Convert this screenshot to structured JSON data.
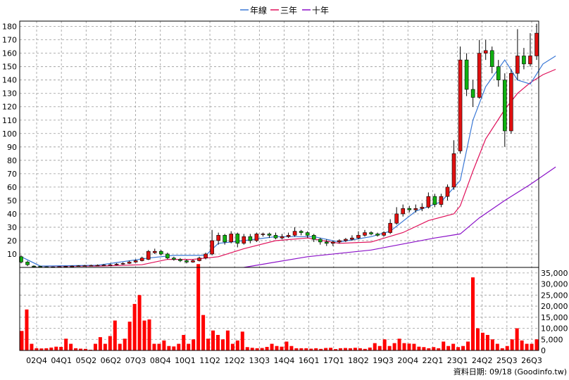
{
  "legend": [
    {
      "label": "年線",
      "color": "#3a78d6"
    },
    {
      "label": "三年",
      "color": "#e0105a"
    },
    {
      "label": "十年",
      "color": "#8a10c8"
    }
  ],
  "source_note": "資料日期: 09/18  (Goodinfo.tw)",
  "colors": {
    "up": "#e01010",
    "down": "#10b010",
    "volume": "#ff0000",
    "grid": "#999999"
  },
  "chart_data": [
    {
      "type": "candlestick",
      "x_tick_labels": [
        "02Q4",
        "04Q1",
        "05Q2",
        "06Q2",
        "07Q3",
        "08Q4",
        "10Q1",
        "11Q2",
        "12Q2",
        "13Q3",
        "14Q4",
        "16Q1",
        "17Q1",
        "18Q2",
        "19Q3",
        "20Q4",
        "22Q1",
        "23Q1",
        "24Q2",
        "25Q3",
        "26Q3"
      ],
      "y_ticks": [
        10,
        20,
        30,
        40,
        50,
        60,
        70,
        80,
        90,
        100,
        110,
        120,
        130,
        140,
        150,
        160,
        170,
        180
      ],
      "ylim": [
        0,
        184
      ],
      "grid": true,
      "candles": [
        {
          "o": 8,
          "c": 4,
          "h": 9,
          "l": 3
        },
        {
          "o": 4,
          "c": 2,
          "h": 5,
          "l": 1
        },
        {
          "o": 1,
          "c": 0.8,
          "h": 1.5,
          "l": 0.3
        },
        {
          "o": 0.8,
          "c": 0.5,
          "h": 1.2,
          "l": 0.2
        },
        {
          "o": 0.5,
          "c": 0.3,
          "h": 0.8,
          "l": 0.1
        },
        {
          "o": 0.3,
          "c": 0.4,
          "h": 0.7,
          "l": 0.1
        },
        {
          "o": 0.4,
          "c": 0.6,
          "h": 0.9,
          "l": 0.2
        },
        {
          "o": 0.6,
          "c": 0.8,
          "h": 1.1,
          "l": 0.4
        },
        {
          "o": 0.8,
          "c": 1,
          "h": 1.4,
          "l": 0.5
        },
        {
          "o": 1,
          "c": 1.2,
          "h": 1.6,
          "l": 0.7
        },
        {
          "o": 1.2,
          "c": 1.3,
          "h": 1.8,
          "l": 0.9
        },
        {
          "o": 1.3,
          "c": 1.5,
          "h": 2,
          "l": 1
        },
        {
          "o": 1.5,
          "c": 1.6,
          "h": 2.2,
          "l": 1.1
        },
        {
          "o": 1.6,
          "c": 1.8,
          "h": 2.4,
          "l": 1.3
        },
        {
          "o": 1.8,
          "c": 2,
          "h": 2.8,
          "l": 1.4
        },
        {
          "o": 2,
          "c": 2.5,
          "h": 3.2,
          "l": 1.6
        },
        {
          "o": 2.5,
          "c": 3,
          "h": 3.8,
          "l": 2
        },
        {
          "o": 3,
          "c": 4,
          "h": 5,
          "l": 2.6
        },
        {
          "o": 4,
          "c": 5,
          "h": 6,
          "l": 3.5
        },
        {
          "o": 5,
          "c": 7,
          "h": 8,
          "l": 4.5
        },
        {
          "o": 6,
          "c": 12,
          "h": 13,
          "l": 5.5
        },
        {
          "o": 11,
          "c": 12,
          "h": 14,
          "l": 10
        },
        {
          "o": 12,
          "c": 10,
          "h": 13,
          "l": 9
        },
        {
          "o": 10,
          "c": 7,
          "h": 11,
          "l": 6
        },
        {
          "o": 7,
          "c": 6,
          "h": 8,
          "l": 5
        },
        {
          "o": 6,
          "c": 5,
          "h": 7,
          "l": 4
        },
        {
          "o": 5,
          "c": 4,
          "h": 6,
          "l": 3
        },
        {
          "o": 4,
          "c": 5,
          "h": 6,
          "l": 3.5
        },
        {
          "o": 5,
          "c": 7,
          "h": 8,
          "l": 4.5
        },
        {
          "o": 7,
          "c": 10,
          "h": 11,
          "l": 6
        },
        {
          "o": 10,
          "c": 20,
          "h": 28,
          "l": 9
        },
        {
          "o": 20,
          "c": 24,
          "h": 26,
          "l": 17
        },
        {
          "o": 24,
          "c": 19,
          "h": 25,
          "l": 17
        },
        {
          "o": 19,
          "c": 25,
          "h": 27,
          "l": 18
        },
        {
          "o": 25,
          "c": 18,
          "h": 26,
          "l": 15
        },
        {
          "o": 18,
          "c": 23,
          "h": 25,
          "l": 17
        },
        {
          "o": 23,
          "c": 20,
          "h": 25,
          "l": 18
        },
        {
          "o": 20,
          "c": 25,
          "h": 26,
          "l": 19
        },
        {
          "o": 25,
          "c": 25,
          "h": 26,
          "l": 23
        },
        {
          "o": 25,
          "c": 24,
          "h": 26,
          "l": 22
        },
        {
          "o": 24,
          "c": 22,
          "h": 26,
          "l": 21
        },
        {
          "o": 22,
          "c": 23,
          "h": 25,
          "l": 21
        },
        {
          "o": 23,
          "c": 24,
          "h": 26,
          "l": 22
        },
        {
          "o": 24,
          "c": 27,
          "h": 30,
          "l": 23
        },
        {
          "o": 27,
          "c": 26,
          "h": 28,
          "l": 24
        },
        {
          "o": 26,
          "c": 24,
          "h": 27,
          "l": 22
        },
        {
          "o": 24,
          "c": 21,
          "h": 25,
          "l": 19
        },
        {
          "o": 21,
          "c": 19,
          "h": 22,
          "l": 17
        },
        {
          "o": 19,
          "c": 18,
          "h": 21,
          "l": 16
        },
        {
          "o": 18,
          "c": 19,
          "h": 20,
          "l": 16
        },
        {
          "o": 19,
          "c": 20,
          "h": 21,
          "l": 18
        },
        {
          "o": 20,
          "c": 21,
          "h": 22,
          "l": 19
        },
        {
          "o": 21,
          "c": 22,
          "h": 24,
          "l": 20
        },
        {
          "o": 22,
          "c": 24,
          "h": 27,
          "l": 21
        },
        {
          "o": 24,
          "c": 26,
          "h": 28,
          "l": 23
        },
        {
          "o": 26,
          "c": 25,
          "h": 27,
          "l": 24
        },
        {
          "o": 25,
          "c": 24,
          "h": 26,
          "l": 23
        },
        {
          "o": 24,
          "c": 26,
          "h": 27,
          "l": 23
        },
        {
          "o": 26,
          "c": 33,
          "h": 36,
          "l": 25
        },
        {
          "o": 33,
          "c": 40,
          "h": 45,
          "l": 32
        },
        {
          "o": 40,
          "c": 44,
          "h": 47,
          "l": 38
        },
        {
          "o": 44,
          "c": 43,
          "h": 46,
          "l": 41
        },
        {
          "o": 43,
          "c": 44,
          "h": 47,
          "l": 41
        },
        {
          "o": 44,
          "c": 45,
          "h": 48,
          "l": 42
        },
        {
          "o": 45,
          "c": 53,
          "h": 56,
          "l": 44
        },
        {
          "o": 53,
          "c": 47,
          "h": 55,
          "l": 45
        },
        {
          "o": 47,
          "c": 53,
          "h": 55,
          "l": 45
        },
        {
          "o": 53,
          "c": 60,
          "h": 62,
          "l": 50
        },
        {
          "o": 60,
          "c": 85,
          "h": 95,
          "l": 58
        },
        {
          "o": 87,
          "c": 155,
          "h": 165,
          "l": 85
        },
        {
          "o": 155,
          "c": 133,
          "h": 160,
          "l": 128
        },
        {
          "o": 133,
          "c": 127,
          "h": 140,
          "l": 120
        },
        {
          "o": 127,
          "c": 160,
          "h": 170,
          "l": 126
        },
        {
          "o": 160,
          "c": 162,
          "h": 170,
          "l": 155
        },
        {
          "o": 162,
          "c": 150,
          "h": 165,
          "l": 145
        },
        {
          "o": 150,
          "c": 140,
          "h": 155,
          "l": 135
        },
        {
          "o": 140,
          "c": 102,
          "h": 145,
          "l": 90
        },
        {
          "o": 102,
          "c": 145,
          "h": 148,
          "l": 100
        },
        {
          "o": 145,
          "c": 158,
          "h": 178,
          "l": 140
        },
        {
          "o": 158,
          "c": 152,
          "h": 164,
          "l": 148
        },
        {
          "o": 152,
          "c": 158,
          "h": 175,
          "l": 150
        },
        {
          "o": 158,
          "c": 175,
          "h": 182,
          "l": 155
        }
      ],
      "ma_year": [
        [
          0,
          8
        ],
        [
          3,
          1
        ],
        [
          12,
          1.6
        ],
        [
          20,
          7
        ],
        [
          24,
          9
        ],
        [
          29,
          9
        ],
        [
          31,
          18
        ],
        [
          35,
          20
        ],
        [
          40,
          23
        ],
        [
          46,
          23
        ],
        [
          50,
          19
        ],
        [
          55,
          23
        ],
        [
          58,
          27
        ],
        [
          62,
          42
        ],
        [
          66,
          49
        ],
        [
          69,
          65
        ],
        [
          71,
          110
        ],
        [
          73,
          135
        ],
        [
          76,
          155
        ],
        [
          78,
          140
        ],
        [
          80,
          137
        ],
        [
          82,
          152
        ],
        [
          84,
          158
        ]
      ],
      "ma_3year": [
        [
          3,
          1
        ],
        [
          12,
          1
        ],
        [
          19,
          2
        ],
        [
          23,
          6
        ],
        [
          27,
          6
        ],
        [
          31,
          8
        ],
        [
          35,
          14
        ],
        [
          40,
          20
        ],
        [
          45,
          22
        ],
        [
          50,
          18
        ],
        [
          55,
          19
        ],
        [
          60,
          26
        ],
        [
          64,
          35
        ],
        [
          68,
          40
        ],
        [
          69,
          46
        ],
        [
          71,
          72
        ],
        [
          73,
          96
        ],
        [
          76,
          118
        ],
        [
          78,
          130
        ],
        [
          80,
          138
        ],
        [
          82,
          144
        ],
        [
          84,
          148
        ]
      ],
      "ma_10year": [
        [
          35,
          0
        ],
        [
          45,
          8
        ],
        [
          55,
          13
        ],
        [
          65,
          22
        ],
        [
          69,
          25
        ],
        [
          72,
          37
        ],
        [
          76,
          50
        ],
        [
          80,
          62
        ],
        [
          84,
          75
        ]
      ]
    },
    {
      "type": "bar",
      "name": "volume",
      "y_ticks": [
        0,
        5000,
        10000,
        15000,
        20000,
        25000,
        30000,
        35000
      ],
      "y_tick_labels": [
        "0",
        "5,000",
        "10,000",
        "15,000",
        "20,000",
        "25,000",
        "30,000",
        "35,000"
      ],
      "ylim": [
        0,
        37500
      ],
      "values": [
        8800,
        18500,
        3000,
        1000,
        900,
        1000,
        1300,
        1700,
        1600,
        5300,
        3000,
        1000,
        800,
        700,
        300,
        3000,
        6000,
        3000,
        6500,
        13500,
        3000,
        5300,
        13000,
        21000,
        25000,
        13500,
        14000,
        3000,
        3000,
        4500,
        2000,
        1800,
        3000,
        7000,
        3000,
        5000,
        39000,
        16000,
        5300,
        9000,
        7000,
        5000,
        9000,
        3000,
        4500,
        8500,
        1500,
        1200,
        1000,
        1100,
        1600,
        3000,
        2000,
        1700,
        4000,
        2000,
        1000,
        1000,
        1000,
        800,
        1000,
        700,
        1100,
        1200,
        600,
        1000,
        1100,
        1000,
        1200,
        1000,
        700,
        1300,
        3300,
        2000,
        5000,
        2000,
        3300,
        5300,
        3300,
        3100,
        3000,
        1700,
        1500,
        1000,
        1500,
        1000,
        4000,
        2000,
        3000,
        1500,
        2000,
        4000,
        33000,
        10000,
        8000,
        7000,
        5000,
        3000,
        1000,
        2000,
        5000,
        10000,
        4500,
        3000,
        3000,
        5000
      ]
    }
  ]
}
